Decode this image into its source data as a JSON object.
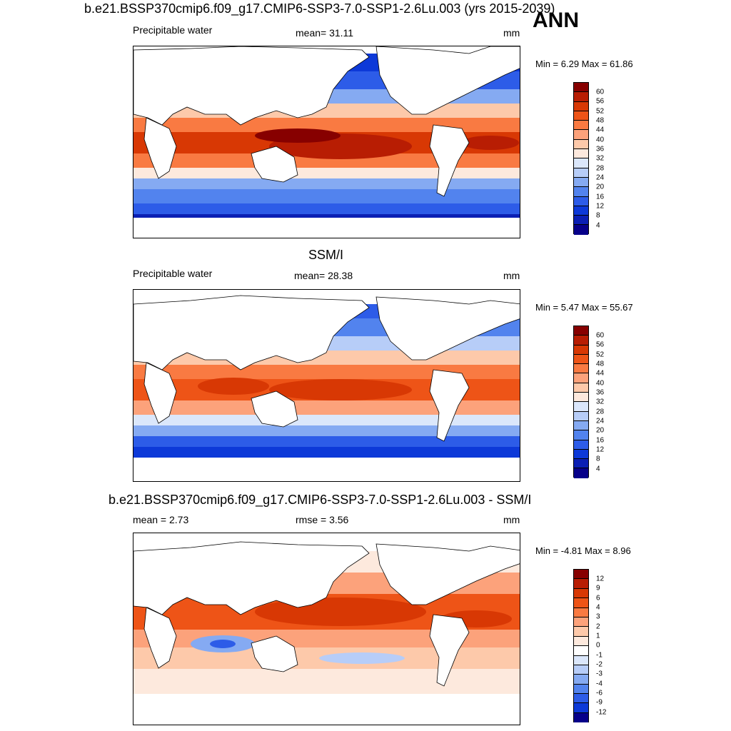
{
  "season": "ANN",
  "panels": [
    {
      "title": "b.e21.BSSP370cmip6.f09_g17.CMIP6-SSP3-7.0-SSP1-2.6Lu.003 (yrs 2015-2039)",
      "left_label": "Precipitable water",
      "center_label": "mean=  31.11",
      "units": "mm",
      "minmax": "Min =   6.29 Max =  61.86",
      "levels": [
        "60",
        "56",
        "52",
        "48",
        "44",
        "40",
        "36",
        "32",
        "28",
        "24",
        "20",
        "16",
        "12",
        "8",
        "4"
      ],
      "colors": [
        "#870000",
        "#b81d03",
        "#d83804",
        "#ee5417",
        "#f97a42",
        "#fca27b",
        "#fdc9aa",
        "#fde9dd",
        "#dbe7fb",
        "#b7cdf8",
        "#85aaf2",
        "#5283ee",
        "#2d5ce8",
        "#0d39d8",
        "#0b1fb4",
        "#07008a"
      ]
    },
    {
      "title": "SSM/I",
      "left_label": "Precipitable water",
      "center_label": "mean=  28.38",
      "units": "mm",
      "minmax": "Min =   5.47 Max =  55.67",
      "levels": [
        "60",
        "56",
        "52",
        "48",
        "44",
        "40",
        "36",
        "32",
        "28",
        "24",
        "20",
        "16",
        "12",
        "8",
        "4"
      ],
      "colors": [
        "#870000",
        "#b81d03",
        "#d83804",
        "#ee5417",
        "#f97a42",
        "#fca27b",
        "#fdc9aa",
        "#fde9dd",
        "#dbe7fb",
        "#b7cdf8",
        "#85aaf2",
        "#5283ee",
        "#2d5ce8",
        "#0d39d8",
        "#0b1fb4",
        "#07008a"
      ]
    },
    {
      "title": "b.e21.BSSP370cmip6.f09_g17.CMIP6-SSP3-7.0-SSP1-2.6Lu.003 - SSM/I",
      "left_label": "mean =   2.73",
      "center_label": "rmse =   3.56",
      "units": "mm",
      "minmax": "Min =  -4.81 Max =   8.96",
      "levels": [
        "12",
        "9",
        "6",
        "4",
        "3",
        "2",
        "1",
        "0",
        "-1",
        "-2",
        "-3",
        "-4",
        "-6",
        "-9",
        "-12"
      ],
      "colors": [
        "#870000",
        "#b81d03",
        "#d83804",
        "#ee5417",
        "#f97a42",
        "#fca27b",
        "#fdc9aa",
        "#fde9dd",
        "#ffffff",
        "#dbe7fb",
        "#b7cdf8",
        "#85aaf2",
        "#5283ee",
        "#2d5ce8",
        "#0d39d8",
        "#07008a"
      ]
    }
  ]
}
